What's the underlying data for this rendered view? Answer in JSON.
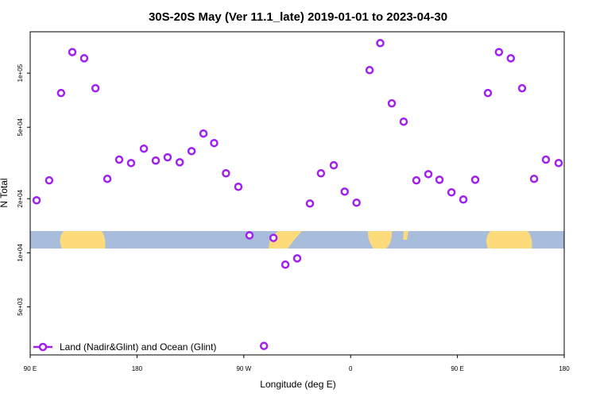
{
  "chart_data": {
    "type": "scatter",
    "title": "30S-20S May (Ver 11.1_late)   2019-01-01 to 2023-04-30",
    "xlabel": "Longitude (deg E)",
    "ylabel": "N Total",
    "log_y": true,
    "xlim": [
      90,
      540
    ],
    "ylim": [
      2700,
      170000
    ],
    "xticks": [
      {
        "value": 90,
        "label": "90 E"
      },
      180,
      {
        "value": 270,
        "label": "90 W"
      },
      {
        "value": 360,
        "label": "0"
      },
      {
        "value": 450,
        "label": "90 E"
      },
      {
        "value": 540,
        "label": "180"
      }
    ],
    "yticks": [
      {
        "value": 5000,
        "label": "5e+03"
      },
      {
        "value": 10000,
        "label": "1e+04"
      },
      {
        "value": 20000,
        "label": "2e+04"
      },
      {
        "value": 50000,
        "label": "5e+04"
      },
      {
        "value": 100000,
        "label": "1e+05"
      }
    ],
    "legend_position": "bottom-left",
    "series": [
      {
        "name": "Land (Nadir&Glint) and Ocean (Glint)",
        "color": "#a020f0",
        "x": [
          95.4,
          106,
          116,
          125.5,
          135.5,
          145,
          155,
          165,
          175,
          185.8,
          195.8,
          205.8,
          216,
          226,
          236,
          245,
          255,
          265.4,
          274.8,
          287,
          295,
          305,
          315,
          325.7,
          335,
          345.8,
          355,
          365,
          376,
          385,
          394.7,
          404.7,
          415.4,
          425.5,
          434.9,
          445,
          455,
          465,
          475.7,
          485,
          495,
          504.5,
          514.6,
          524.6,
          535.3
        ],
        "values": [
          19600,
          25300,
          77500,
          131000,
          121000,
          82400,
          25800,
          33000,
          31600,
          38000,
          32600,
          34000,
          31900,
          36800,
          46100,
          40800,
          27700,
          23300,
          12500,
          3030,
          12100,
          8590,
          9310,
          18800,
          27700,
          30700,
          21900,
          19000,
          104000,
          147000,
          67900,
          53700,
          25300,
          27400,
          25500,
          21700,
          19800,
          25500,
          77500,
          131000,
          121000,
          82400,
          25800,
          33000,
          31600
        ]
      }
    ]
  }
}
